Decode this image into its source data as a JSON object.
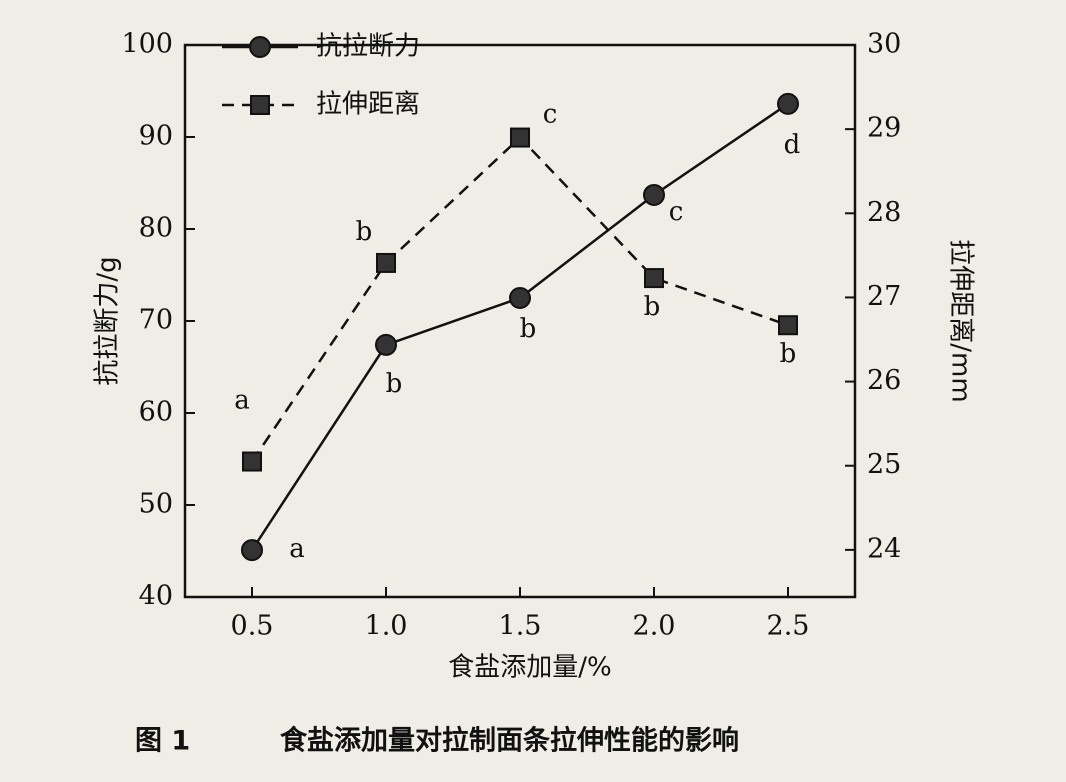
{
  "chart_data": {
    "type": "line",
    "caption_number": "图 1",
    "caption": "食盐添加量对拉制面条拉伸性能的影响",
    "x_label": "食盐添加量/%",
    "y_label": "抗拉断力/g",
    "y2_label": "拉伸距离/mm",
    "x": [
      0.5,
      1,
      1.5,
      2,
      2.5
    ],
    "xlim": [
      0.25,
      2.75
    ],
    "xticks": [
      0.5,
      {
        "value": 1,
        "label": "1.0"
      },
      1.5,
      {
        "value": 2,
        "label": "2.0"
      },
      2.5
    ],
    "ylim": [
      40,
      100
    ],
    "yticks": [
      40,
      50,
      60,
      70,
      80,
      90,
      100
    ],
    "y2lim": [
      23.44,
      30
    ],
    "y2ticks": [
      24,
      25,
      26,
      27,
      28,
      29,
      30
    ],
    "legend": "upper left",
    "series": [
      {
        "name": "抗拉断力",
        "color": "#111111",
        "marker": "circle",
        "dash": false,
        "values": [
          45.1,
          67.4,
          72.5,
          83.7,
          93.6
        ],
        "letters": [
          "a",
          "b",
          "b",
          "c",
          "d"
        ]
      },
      {
        "name": "拉伸距离",
        "color": "#111111",
        "marker": "square",
        "dash": true,
        "axis": "y2",
        "values": [
          25.05,
          27.41,
          28.9,
          27.23,
          26.67
        ],
        "letters": [
          "a",
          "b",
          "c",
          "b",
          "b"
        ]
      }
    ]
  }
}
